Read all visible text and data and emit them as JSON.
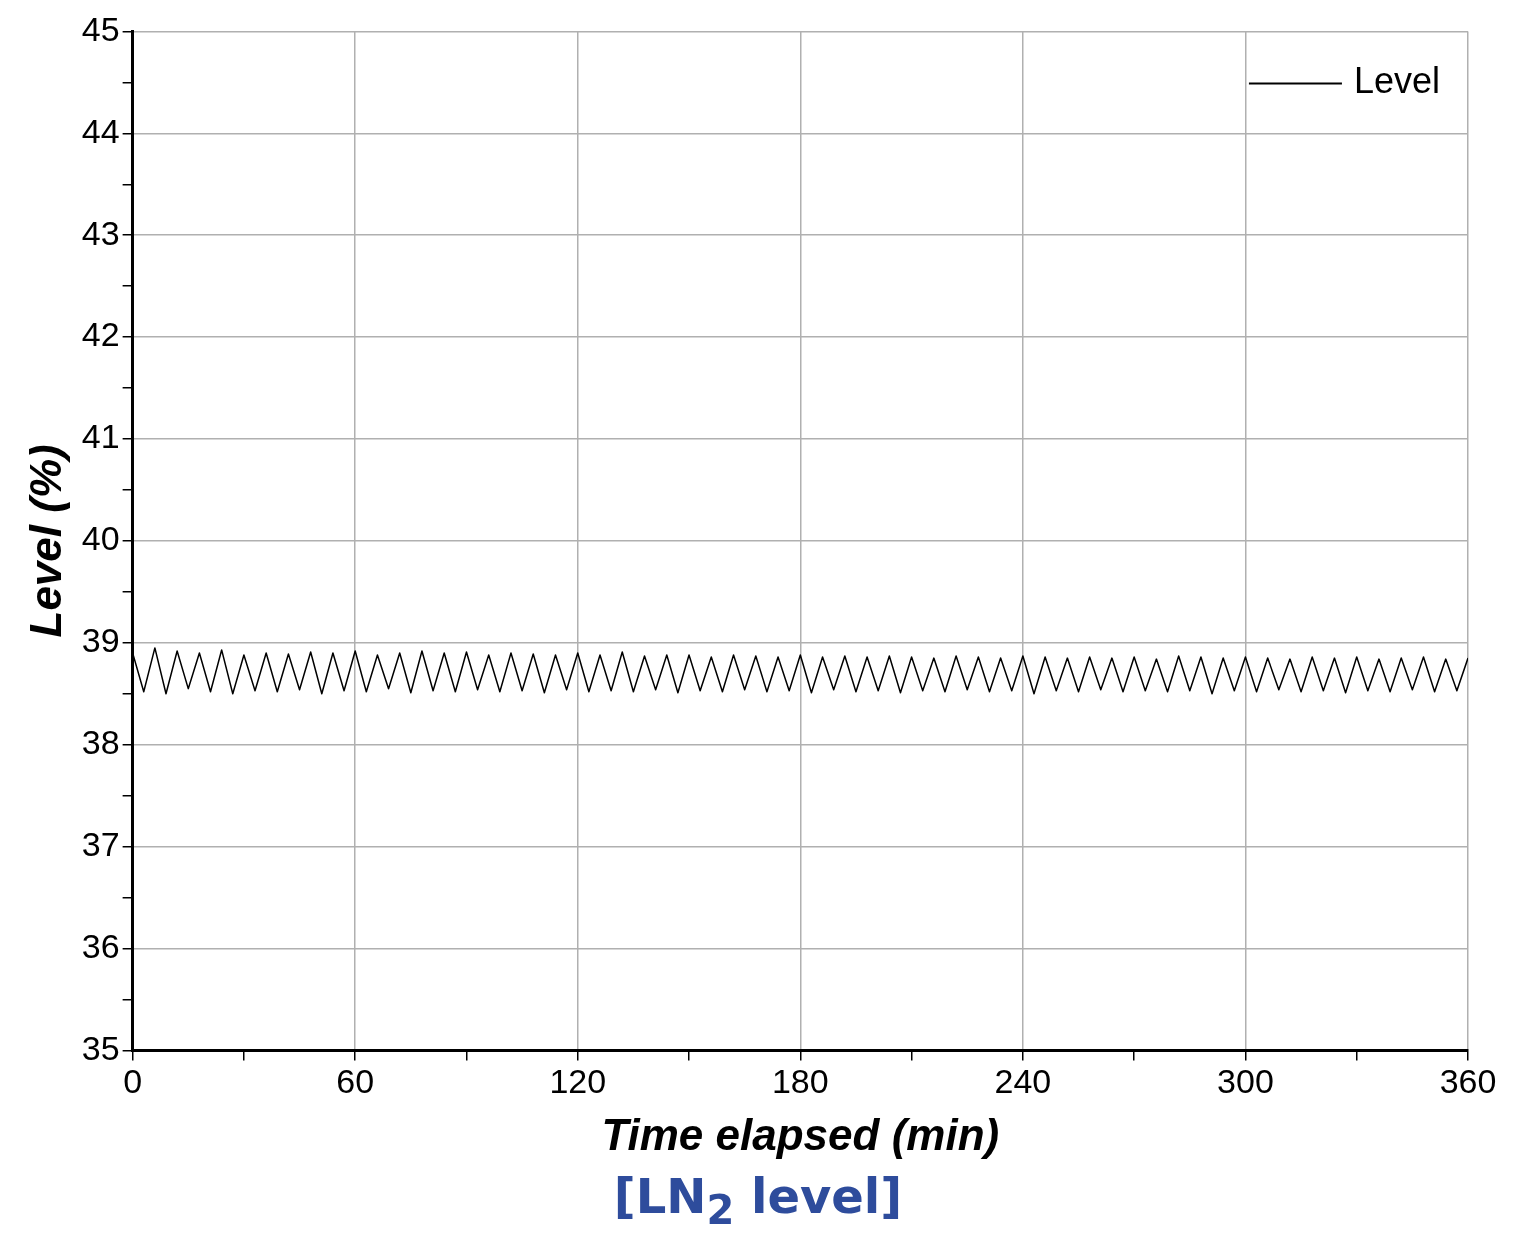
{
  "chart_data": {
    "type": "line",
    "xlabel": "Time elapsed (min)",
    "ylabel": "Level (%)",
    "annotations": [
      "[LN$_{2}$ level]"
    ],
    "xlim": [
      0,
      360
    ],
    "ylim": [
      35,
      45
    ],
    "xticks": [
      0,
      {
        "value": 30,
        "label": null
      },
      60,
      {
        "value": 90,
        "label": null
      },
      120,
      {
        "value": 150,
        "label": null
      },
      180,
      {
        "value": 210,
        "label": null
      },
      240,
      {
        "value": 270,
        "label": null
      },
      300,
      {
        "value": 330,
        "label": null
      },
      360
    ],
    "yticks": [
      35,
      {
        "value": 35.5,
        "label": null
      },
      36,
      {
        "value": 36.5,
        "label": null
      },
      37,
      {
        "value": 37.5,
        "label": null
      },
      38,
      {
        "value": 38.5,
        "label": null
      },
      39,
      {
        "value": 39.5,
        "label": null
      },
      40,
      {
        "value": 40.5,
        "label": null
      },
      41,
      {
        "value": 41.5,
        "label": null
      },
      42,
      {
        "value": 42.5,
        "label": null
      },
      43,
      {
        "value": 43.5,
        "label": null
      },
      44,
      {
        "value": 44.5,
        "label": null
      },
      45
    ],
    "grid": true,
    "legend": "top right",
    "marker": "none",
    "line_style": "solid",
    "x": [
      0,
      3,
      6,
      9,
      12,
      15,
      18,
      21,
      24,
      27,
      30,
      33,
      36,
      39,
      42,
      45,
      48,
      51,
      54,
      57,
      60,
      63,
      66,
      69,
      72,
      75,
      78,
      81,
      84,
      87,
      90,
      93,
      96,
      99,
      102,
      105,
      108,
      111,
      114,
      117,
      120,
      123,
      126,
      129,
      132,
      135,
      138,
      141,
      144,
      147,
      150,
      153,
      156,
      159,
      162,
      165,
      168,
      171,
      174,
      177,
      180,
      183,
      186,
      189,
      192,
      195,
      198,
      201,
      204,
      207,
      210,
      213,
      216,
      219,
      222,
      225,
      228,
      231,
      234,
      237,
      240,
      243,
      246,
      249,
      252,
      255,
      258,
      261,
      264,
      267,
      270,
      273,
      276,
      279,
      282,
      285,
      288,
      291,
      294,
      297,
      300,
      303,
      306,
      309,
      312,
      315,
      318,
      321,
      324,
      327,
      330,
      333,
      336,
      339,
      342,
      345,
      348,
      351,
      354,
      357,
      360
    ],
    "series": [
      {
        "name": "Level",
        "color": "#000000",
        "values": [
          38.9,
          38.52,
          38.95,
          38.5,
          38.92,
          38.55,
          38.9,
          38.52,
          38.93,
          38.5,
          38.88,
          38.53,
          38.9,
          38.52,
          38.89,
          38.54,
          38.91,
          38.5,
          38.9,
          38.53,
          38.92,
          38.52,
          38.88,
          38.55,
          38.9,
          38.51,
          38.92,
          38.53,
          38.9,
          38.52,
          38.91,
          38.54,
          38.88,
          38.52,
          38.9,
          38.53,
          38.89,
          38.51,
          38.88,
          38.54,
          38.9,
          38.52,
          38.88,
          38.53,
          38.91,
          38.52,
          38.87,
          38.54,
          38.88,
          38.51,
          38.88,
          38.53,
          38.86,
          38.52,
          38.88,
          38.54,
          38.87,
          38.52,
          38.86,
          38.53,
          38.88,
          38.51,
          38.86,
          38.54,
          38.87,
          38.52,
          38.86,
          38.53,
          38.87,
          38.51,
          38.86,
          38.53,
          38.85,
          38.52,
          38.87,
          38.54,
          38.86,
          38.52,
          38.85,
          38.53,
          38.87,
          38.5,
          38.86,
          38.53,
          38.85,
          38.52,
          38.86,
          38.54,
          38.85,
          38.52,
          38.86,
          38.53,
          38.84,
          38.52,
          38.87,
          38.53,
          38.86,
          38.5,
          38.85,
          38.53,
          38.86,
          38.52,
          38.85,
          38.54,
          38.84,
          38.52,
          38.86,
          38.53,
          38.85,
          38.51,
          38.86,
          38.53,
          38.84,
          38.52,
          38.85,
          38.54,
          38.86,
          38.52,
          38.84,
          38.53,
          38.85
        ]
      }
    ]
  }
}
